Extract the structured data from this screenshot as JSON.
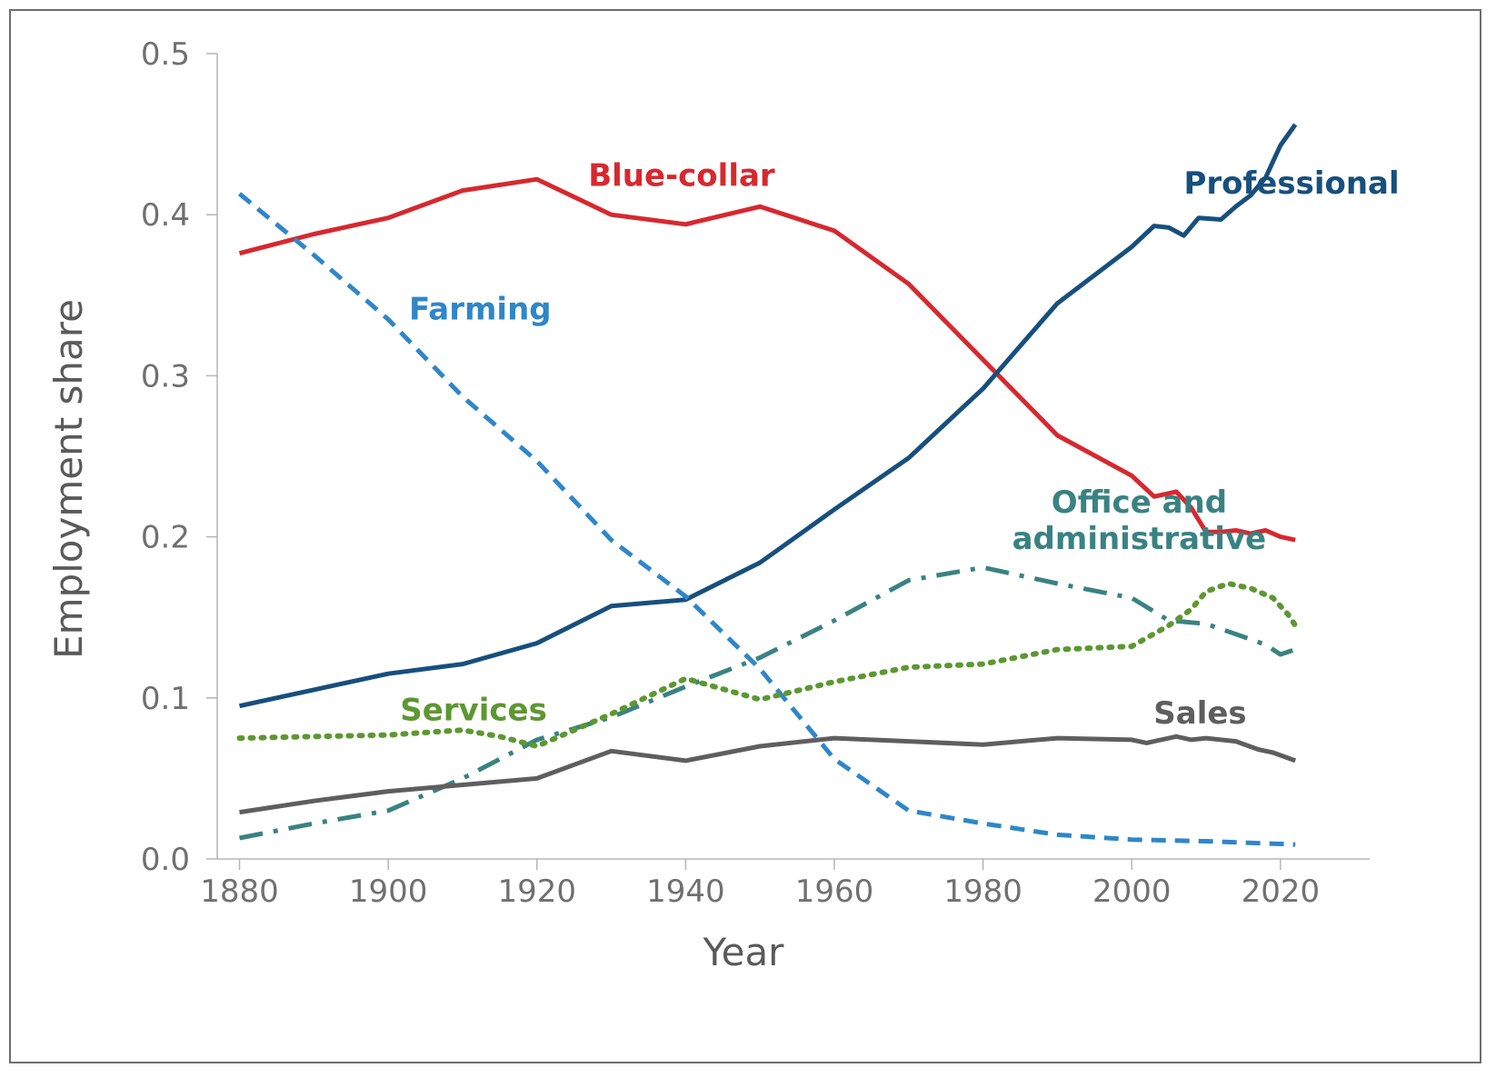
{
  "chart_data": {
    "type": "line",
    "title": "",
    "xlabel": "Year",
    "ylabel": "Employment share",
    "xlim": [
      1877,
      2032
    ],
    "ylim": [
      0,
      0.5
    ],
    "xticks": [
      "1880",
      "1900",
      "1920",
      "1940",
      "1960",
      "1980",
      "2000",
      "2020"
    ],
    "yticks": [
      "0.0",
      "0.1",
      "0.2",
      "0.3",
      "0.4",
      "0.5"
    ],
    "grid": false,
    "series": [
      {
        "name": "Blue-collar",
        "color": "#d7282f",
        "style": "solid",
        "label_lines": [
          "Blue-collar"
        ],
        "points": [
          [
            1880,
            0.376
          ],
          [
            1890,
            0.388
          ],
          [
            1900,
            0.398
          ],
          [
            1910,
            0.415
          ],
          [
            1920,
            0.422
          ],
          [
            1930,
            0.4
          ],
          [
            1940,
            0.394
          ],
          [
            1950,
            0.405
          ],
          [
            1960,
            0.39
          ],
          [
            1970,
            0.357
          ],
          [
            1980,
            0.31
          ],
          [
            1990,
            0.263
          ],
          [
            2000,
            0.238
          ],
          [
            2003,
            0.225
          ],
          [
            2006,
            0.228
          ],
          [
            2008,
            0.218
          ],
          [
            2010,
            0.203
          ],
          [
            2012,
            0.203
          ],
          [
            2014,
            0.204
          ],
          [
            2016,
            0.202
          ],
          [
            2018,
            0.204
          ],
          [
            2020,
            0.2
          ],
          [
            2022,
            0.198
          ]
        ]
      },
      {
        "name": "Professional",
        "color": "#174f7d",
        "style": "solid",
        "label_lines": [
          "Professional"
        ],
        "points": [
          [
            1880,
            0.095
          ],
          [
            1890,
            0.105
          ],
          [
            1900,
            0.115
          ],
          [
            1910,
            0.121
          ],
          [
            1920,
            0.134
          ],
          [
            1930,
            0.157
          ],
          [
            1940,
            0.161
          ],
          [
            1950,
            0.184
          ],
          [
            1960,
            0.217
          ],
          [
            1970,
            0.249
          ],
          [
            1980,
            0.292
          ],
          [
            1990,
            0.345
          ],
          [
            2000,
            0.38
          ],
          [
            2003,
            0.393
          ],
          [
            2005,
            0.392
          ],
          [
            2007,
            0.387
          ],
          [
            2009,
            0.398
          ],
          [
            2012,
            0.397
          ],
          [
            2014,
            0.405
          ],
          [
            2016,
            0.412
          ],
          [
            2018,
            0.423
          ],
          [
            2020,
            0.443
          ],
          [
            2022,
            0.456
          ]
        ]
      },
      {
        "name": "Farming",
        "color": "#2f86c8",
        "style": "dashed",
        "label_lines": [
          "Farming"
        ],
        "points": [
          [
            1880,
            0.413
          ],
          [
            1890,
            0.375
          ],
          [
            1900,
            0.335
          ],
          [
            1910,
            0.287
          ],
          [
            1920,
            0.247
          ],
          [
            1930,
            0.198
          ],
          [
            1940,
            0.163
          ],
          [
            1950,
            0.118
          ],
          [
            1960,
            0.062
          ],
          [
            1970,
            0.03
          ],
          [
            1980,
            0.022
          ],
          [
            1990,
            0.015
          ],
          [
            2000,
            0.012
          ],
          [
            2010,
            0.011
          ],
          [
            2022,
            0.009
          ]
        ]
      },
      {
        "name": "Office and administrative",
        "color": "#3a8282",
        "style": "dashdot",
        "label_lines": [
          "Office and",
          "administrative"
        ],
        "points": [
          [
            1880,
            0.013
          ],
          [
            1890,
            0.022
          ],
          [
            1900,
            0.03
          ],
          [
            1910,
            0.05
          ],
          [
            1920,
            0.074
          ],
          [
            1930,
            0.088
          ],
          [
            1940,
            0.107
          ],
          [
            1950,
            0.125
          ],
          [
            1960,
            0.148
          ],
          [
            1970,
            0.173
          ],
          [
            1980,
            0.181
          ],
          [
            1990,
            0.171
          ],
          [
            2000,
            0.162
          ],
          [
            2005,
            0.148
          ],
          [
            2010,
            0.146
          ],
          [
            2015,
            0.138
          ],
          [
            2018,
            0.133
          ],
          [
            2020,
            0.127
          ],
          [
            2022,
            0.13
          ]
        ]
      },
      {
        "name": "Services",
        "color": "#5d9732",
        "style": "dotted",
        "label_lines": [
          "Services"
        ],
        "points": [
          [
            1880,
            0.075
          ],
          [
            1890,
            0.076
          ],
          [
            1900,
            0.077
          ],
          [
            1910,
            0.08
          ],
          [
            1915,
            0.076
          ],
          [
            1920,
            0.07
          ],
          [
            1930,
            0.09
          ],
          [
            1940,
            0.112
          ],
          [
            1950,
            0.099
          ],
          [
            1960,
            0.11
          ],
          [
            1970,
            0.119
          ],
          [
            1980,
            0.121
          ],
          [
            1990,
            0.13
          ],
          [
            2000,
            0.132
          ],
          [
            2005,
            0.145
          ],
          [
            2008,
            0.155
          ],
          [
            2010,
            0.166
          ],
          [
            2013,
            0.171
          ],
          [
            2016,
            0.168
          ],
          [
            2019,
            0.162
          ],
          [
            2021,
            0.152
          ],
          [
            2022,
            0.145
          ]
        ]
      },
      {
        "name": "Sales",
        "color": "#5e5e5e",
        "style": "solid",
        "label_lines": [
          "Sales"
        ],
        "points": [
          [
            1880,
            0.029
          ],
          [
            1890,
            0.036
          ],
          [
            1900,
            0.042
          ],
          [
            1910,
            0.046
          ],
          [
            1920,
            0.05
          ],
          [
            1930,
            0.067
          ],
          [
            1940,
            0.061
          ],
          [
            1950,
            0.07
          ],
          [
            1960,
            0.075
          ],
          [
            1970,
            0.073
          ],
          [
            1980,
            0.071
          ],
          [
            1990,
            0.075
          ],
          [
            2000,
            0.074
          ],
          [
            2002,
            0.072
          ],
          [
            2006,
            0.076
          ],
          [
            2008,
            0.074
          ],
          [
            2010,
            0.075
          ],
          [
            2014,
            0.073
          ],
          [
            2017,
            0.068
          ],
          [
            2019,
            0.066
          ],
          [
            2022,
            0.061
          ]
        ]
      }
    ]
  }
}
